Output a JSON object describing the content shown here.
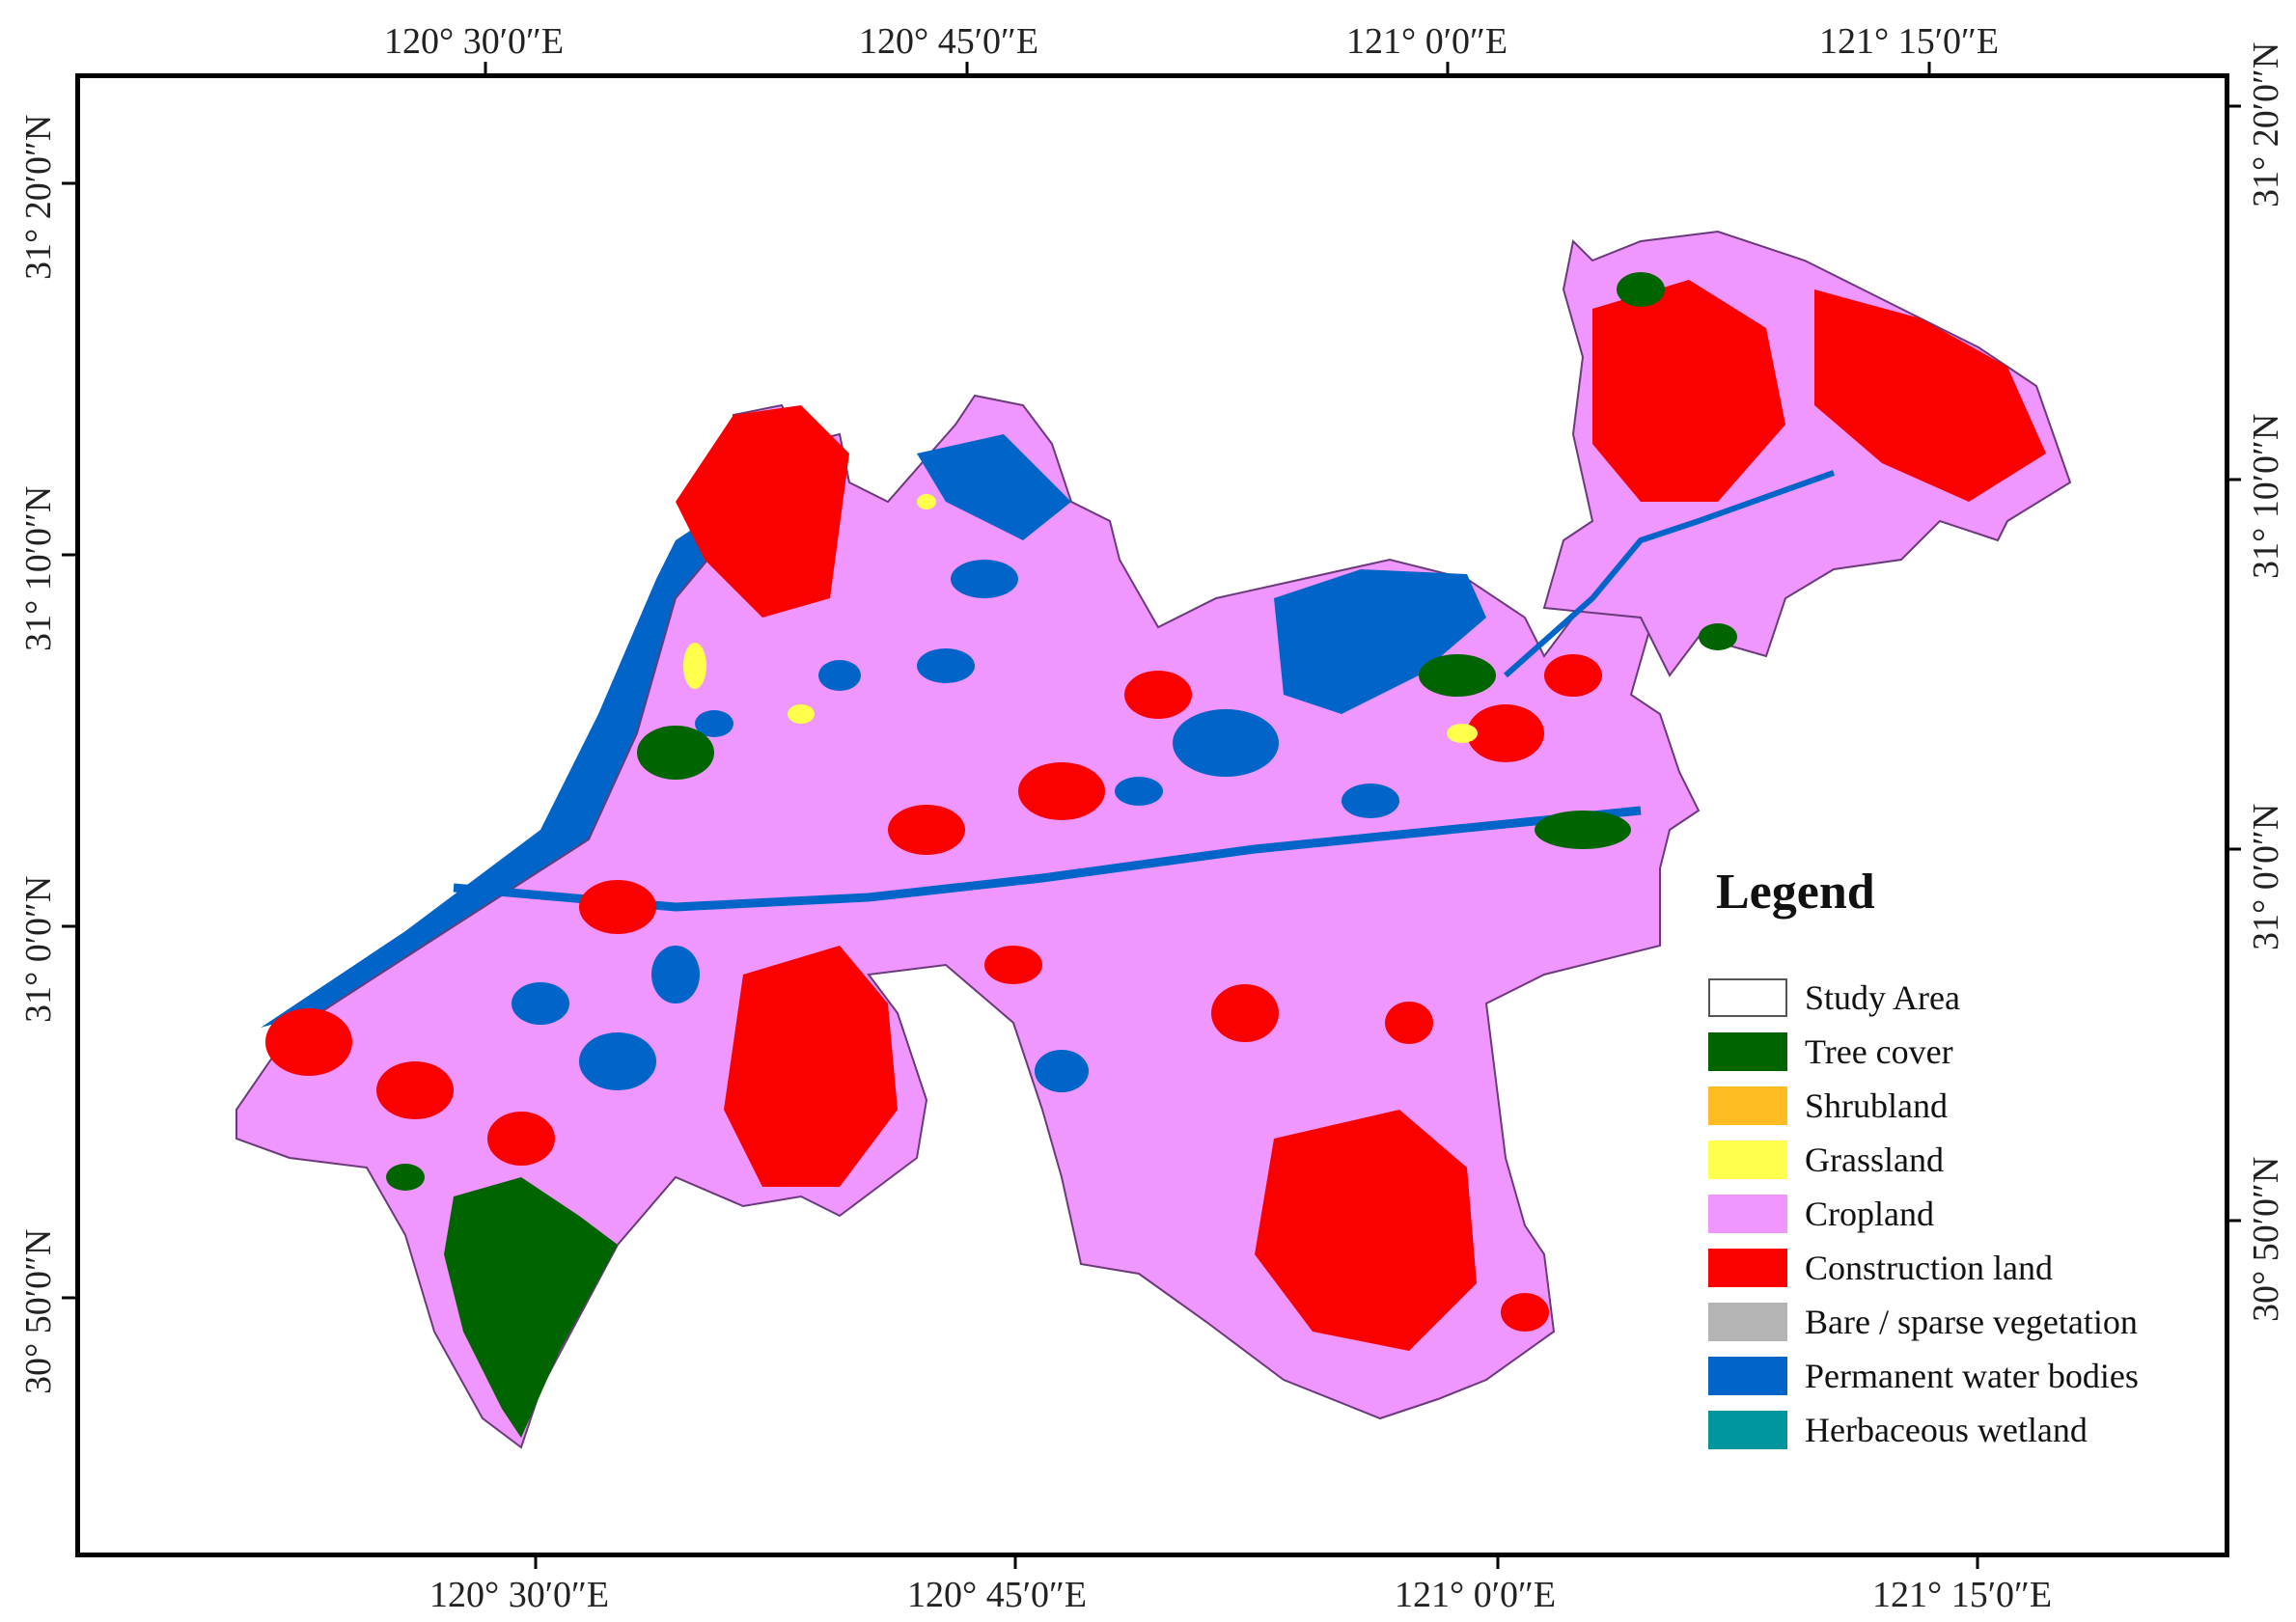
{
  "map": {
    "top_axis_labels": [
      "120° 30′0″E",
      "120° 45′0″E",
      "121° 0′0″E",
      "121° 15′0″E"
    ],
    "bottom_axis_labels": [
      "120° 30′0″E",
      "120° 45′0″E",
      "121° 0′0″E",
      "121° 15′0″E"
    ],
    "left_axis_labels": [
      "31° 20′0″N",
      "31° 10′0″N",
      "31° 0′0″N",
      "30° 50′0″N"
    ],
    "right_axis_labels": [
      "31° 20′0″N",
      "31° 10′0″N",
      "31° 0′0″N",
      "30° 50′0″N"
    ]
  },
  "legend": {
    "title": "Legend",
    "items": [
      {
        "label": "Study Area",
        "color": "#ffffff",
        "border": "#555555"
      },
      {
        "label": "Tree cover",
        "color": "#006400"
      },
      {
        "label": "Shrubland",
        "color": "#ffbb22"
      },
      {
        "label": "Grassland",
        "color": "#ffff4c"
      },
      {
        "label": "Cropland",
        "color": "#f096ff"
      },
      {
        "label": "Construction land",
        "color": "#fa0000"
      },
      {
        "label": "Bare / sparse vegetation",
        "color": "#b4b4b4"
      },
      {
        "label": "Permanent water bodies",
        "color": "#0064c8"
      },
      {
        "label": "Herbaceous wetland",
        "color": "#0096a0"
      }
    ]
  }
}
